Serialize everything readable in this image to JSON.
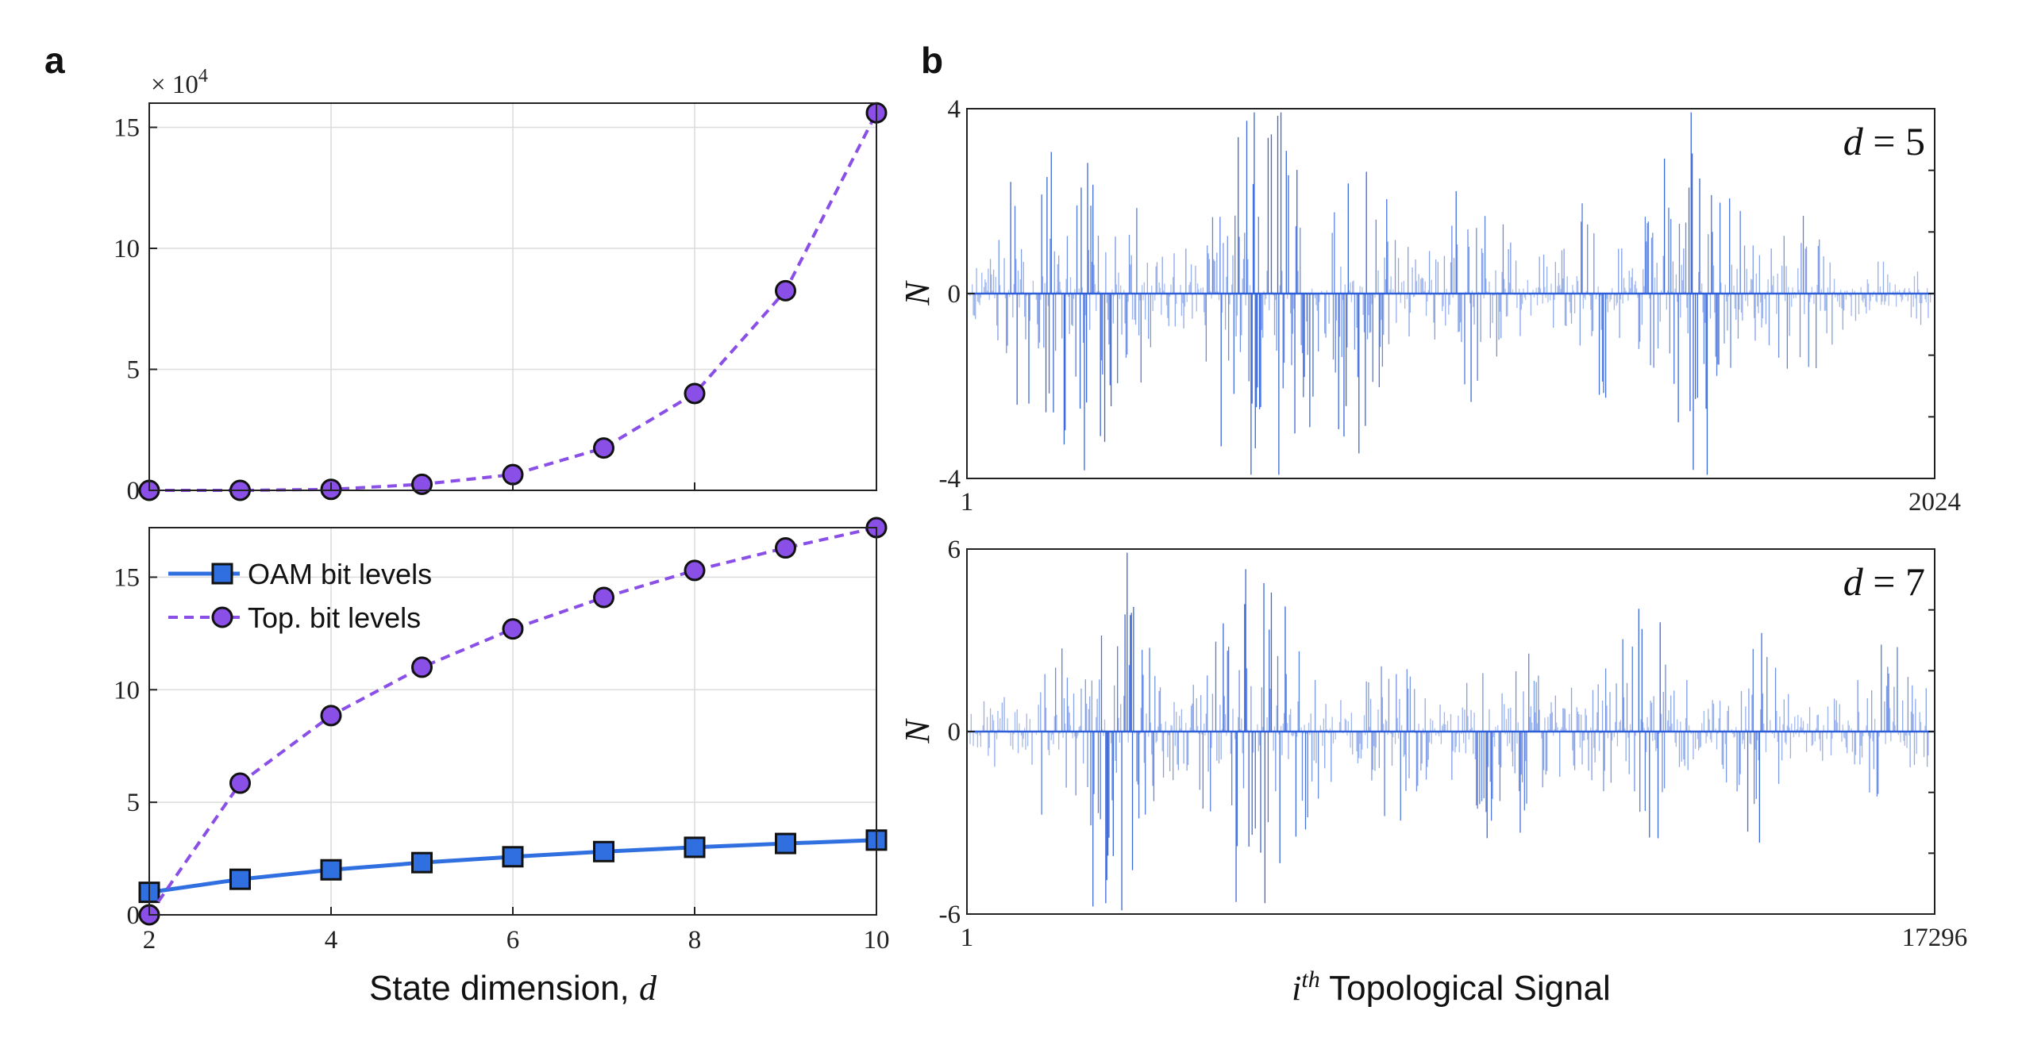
{
  "chart_data": [
    {
      "panel": "a",
      "type": "line",
      "exponent_label": {
        "base": "× 10",
        "power": "4"
      },
      "x": [
        2,
        3,
        4,
        5,
        6,
        7,
        8,
        9,
        10
      ],
      "xlim": [
        2,
        10
      ],
      "ylim": [
        0,
        16
      ],
      "xticks": [
        "2",
        "4",
        "6",
        "8",
        "10"
      ],
      "yticks": [
        "0",
        "5",
        "10",
        "15"
      ],
      "grid": true,
      "series": [
        {
          "name": "Top. levels",
          "values": [
            0,
            0,
            0.04,
            0.25,
            0.65,
            1.75,
            4.0,
            8.25,
            15.6
          ],
          "color": "#8a4fe6",
          "dash": true,
          "marker": "circle"
        }
      ]
    },
    {
      "panel": "a",
      "type": "line",
      "x": [
        2,
        3,
        4,
        5,
        6,
        7,
        8,
        9,
        10
      ],
      "xlim": [
        2,
        10
      ],
      "ylim": [
        0,
        17.2
      ],
      "xticks": [
        "2",
        "4",
        "6",
        "8",
        "10"
      ],
      "yticks": [
        "0",
        "5",
        "10",
        "15"
      ],
      "xlabel": "State dimension, ",
      "xlabel_var": "d",
      "grid": true,
      "legend": "top-left",
      "series": [
        {
          "name": "OAM bit levels",
          "values": [
            1.0,
            1.58,
            2.0,
            2.32,
            2.58,
            2.81,
            3.0,
            3.17,
            3.32
          ],
          "color": "#2f6fe0",
          "dash": false,
          "marker": "square"
        },
        {
          "name": "Top. bit levels",
          "values": [
            0,
            5.85,
            8.85,
            11.0,
            12.7,
            14.1,
            15.3,
            16.3,
            17.2
          ],
          "color": "#8a4fe6",
          "dash": true,
          "marker": "circle"
        }
      ]
    },
    {
      "panel": "b",
      "type": "bar",
      "annotation": {
        "var": "d",
        "rest": " = 5"
      },
      "ylabel": "N",
      "xlim": [
        1,
        2024
      ],
      "ylim": [
        -4,
        4
      ],
      "xticks": [
        "1",
        "2024"
      ],
      "yticks": [
        "4",
        "0",
        "-4"
      ],
      "color": "#2f5fd6",
      "n_signals": 2024
    },
    {
      "panel": "b",
      "type": "bar",
      "annotation": {
        "var": "d",
        "rest": " = 7"
      },
      "ylabel": "N",
      "xlim": [
        1,
        17296
      ],
      "ylim": [
        -6,
        6
      ],
      "xticks": [
        "1",
        "17296"
      ],
      "yticks": [
        "6",
        "0",
        "-6"
      ],
      "xlabel_sup": "th",
      "xlabel_var": "i",
      "xlabel": " Topological Signal",
      "color": "#2f5fd6",
      "n_signals": 17296
    }
  ],
  "panels": {
    "a": "a",
    "b": "b"
  }
}
